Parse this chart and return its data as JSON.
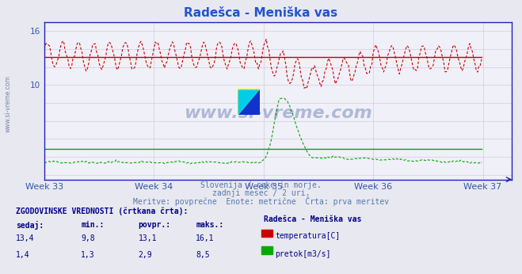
{
  "title": "Radešca - Meniška vas",
  "title_color": "#2255cc",
  "bg_color": "#e8e8f0",
  "plot_bg_color": "#f0f0f8",
  "grid_color": "#d0c8d8",
  "x_labels": [
    "Week 33",
    "Week 34",
    "Week 35",
    "Week 36",
    "Week 37"
  ],
  "x_ticks": [
    0,
    84,
    168,
    252,
    336
  ],
  "y_ticks_shown": [
    10,
    16
  ],
  "y_ticks_all": [
    0,
    2,
    4,
    6,
    8,
    10,
    12,
    14,
    16
  ],
  "ylim": [
    -0.5,
    17.0
  ],
  "xlim": [
    0,
    358
  ],
  "temp_color": "#cc0000",
  "flow_color": "#00aa00",
  "avg_temp": 13.1,
  "avg_flow": 2.9,
  "subtitle1": "Slovenija / reke in morje.",
  "subtitle2": "zadnji mesec / 2 uri.",
  "subtitle3": "Meritve: povprečne  Enote: metrične  Črta: prva meritev",
  "legend_title": "Radešca - Meniška vas",
  "stat_header": "ZGODOVINSKE VREDNOSTI (črtkana črta):",
  "col_headers": [
    "sedaj:",
    "min.:",
    "povpr.:",
    "maks.:"
  ],
  "temp_stats": [
    "13,4",
    "9,8",
    "13,1",
    "16,1"
  ],
  "flow_stats": [
    "1,4",
    "1,3",
    "2,9",
    "8,5"
  ],
  "temp_label": "temperatura[C]",
  "flow_label": "pretok[m3/s]",
  "watermark": "www.si-vreme.com",
  "side_watermark": "www.si-vreme.com",
  "n_points": 336,
  "axis_color": "#2222bb",
  "tick_color": "#3355aa",
  "subtitle_color": "#5577aa",
  "table_color": "#000088"
}
